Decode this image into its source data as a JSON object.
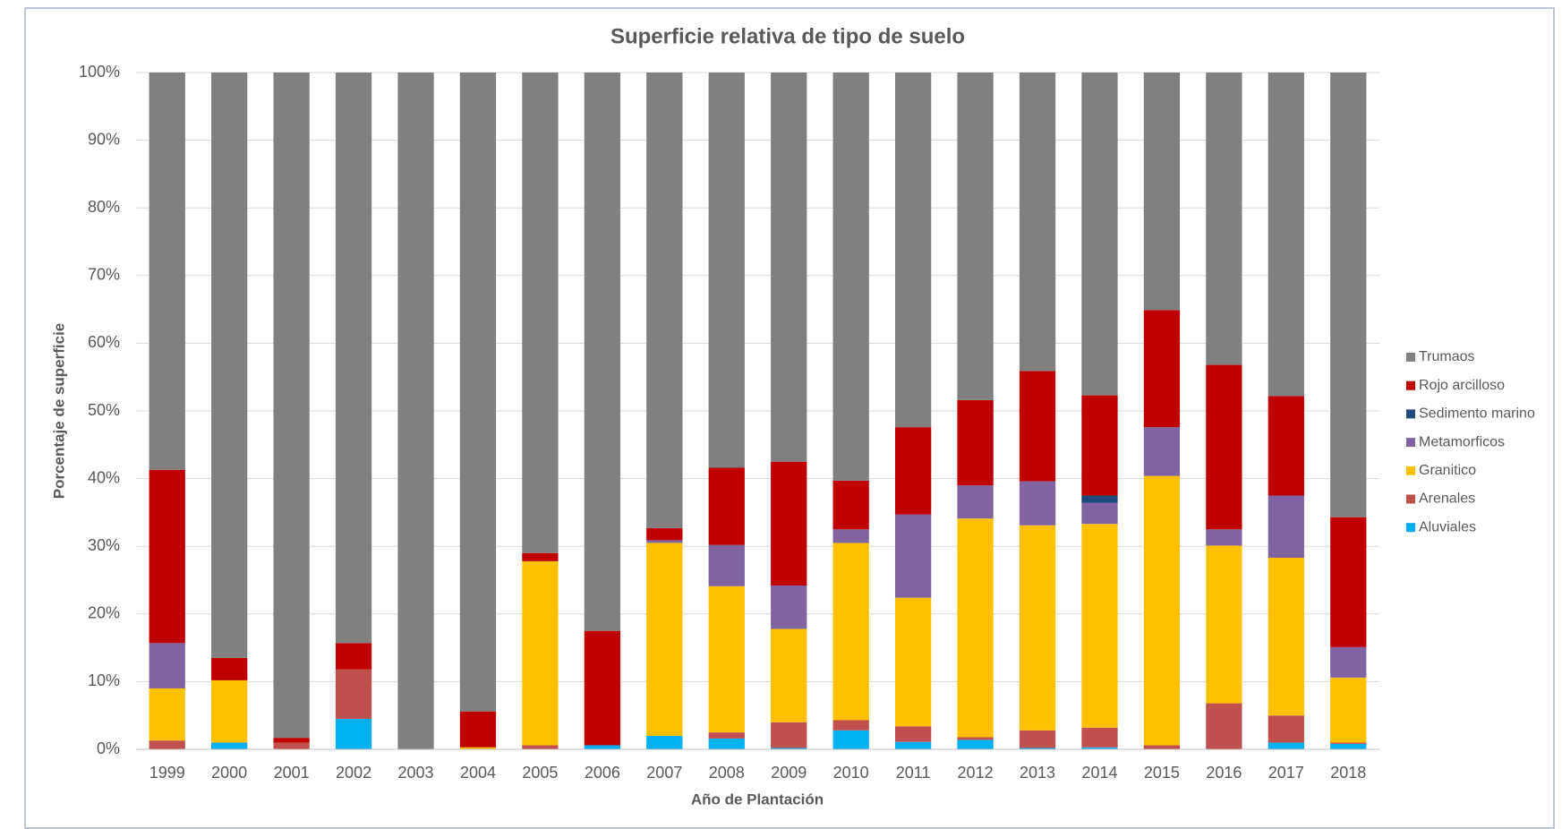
{
  "chart_data": {
    "type": "stacked_bar",
    "title": "Superficie relativa de tipo de suelo",
    "x_label": "Año de Plantación",
    "y_label": "Porcentaje de superficie",
    "categories": [
      "1999",
      "2000",
      "2001",
      "2002",
      "2003",
      "2004",
      "2005",
      "2006",
      "2007",
      "2008",
      "2009",
      "2010",
      "2011",
      "2012",
      "2013",
      "2014",
      "2015",
      "2016",
      "2017",
      "2018"
    ],
    "series": [
      {
        "name": "Aluviales",
        "color": "#00b0f0",
        "values": [
          0,
          1.0,
          0,
          4.5,
          0,
          0,
          0,
          0.6,
          2.0,
          1.6,
          0.2,
          2.8,
          1.1,
          1.4,
          0.2,
          0.3,
          0,
          0,
          1.0,
          0.8
        ]
      },
      {
        "name": "Arenales",
        "color": "#c0504d",
        "values": [
          1.3,
          0,
          1.0,
          7.3,
          0,
          0,
          0.6,
          0,
          0,
          0.9,
          3.8,
          1.5,
          2.3,
          0.4,
          2.6,
          2.9,
          0.6,
          6.8,
          4.0,
          0.2
        ]
      },
      {
        "name": "Granitico",
        "color": "#ffc000",
        "values": [
          7.7,
          9.2,
          0,
          0,
          0,
          0.3,
          27.2,
          0,
          28.5,
          21.6,
          13.8,
          26.2,
          19.0,
          32.3,
          30.3,
          30.1,
          39.8,
          23.3,
          23.3,
          9.6
        ]
      },
      {
        "name": "Metamorficos",
        "color": "#8064a2",
        "values": [
          6.7,
          0,
          0,
          0,
          0,
          0,
          0,
          0,
          0.4,
          6.1,
          6.4,
          2.0,
          12.3,
          4.9,
          6.5,
          3.1,
          7.2,
          2.4,
          9.2,
          4.5
        ]
      },
      {
        "name": "Sedimento marino",
        "color": "#1f497d",
        "values": [
          0,
          0,
          0,
          0,
          0,
          0,
          0,
          0,
          0,
          0,
          0,
          0,
          0,
          0,
          0,
          1.1,
          0,
          0,
          0,
          0
        ]
      },
      {
        "name": "Rojo arcilloso",
        "color": "#c00000",
        "values": [
          25.6,
          3.3,
          0.7,
          3.9,
          0,
          5.3,
          1.2,
          16.9,
          1.8,
          11.4,
          18.3,
          7.2,
          12.9,
          12.6,
          16.3,
          14.8,
          17.3,
          24.3,
          14.7,
          19.2
        ]
      },
      {
        "name": "Trumaos",
        "color": "#808080",
        "values": [
          58.7,
          86.5,
          98.3,
          84.3,
          100,
          94.4,
          71,
          82.5,
          67.3,
          58.4,
          57.5,
          60.3,
          52.4,
          48.4,
          44.1,
          47.7,
          35.1,
          43.2,
          47.8,
          65.7
        ]
      }
    ],
    "ylim": [
      0,
      100
    ],
    "yticks": [
      {
        "value": 0,
        "label": "0%"
      },
      {
        "value": 10,
        "label": "10%"
      },
      {
        "value": 20,
        "label": "20%"
      },
      {
        "value": 30,
        "label": "30%"
      },
      {
        "value": 40,
        "label": "40%"
      },
      {
        "value": 50,
        "label": "50%"
      },
      {
        "value": 60,
        "label": "60%"
      },
      {
        "value": 70,
        "label": "70%"
      },
      {
        "value": 80,
        "label": "80%"
      },
      {
        "value": 90,
        "label": "90%"
      },
      {
        "value": 100,
        "label": "100%"
      }
    ],
    "grid": true,
    "legend": "right"
  }
}
